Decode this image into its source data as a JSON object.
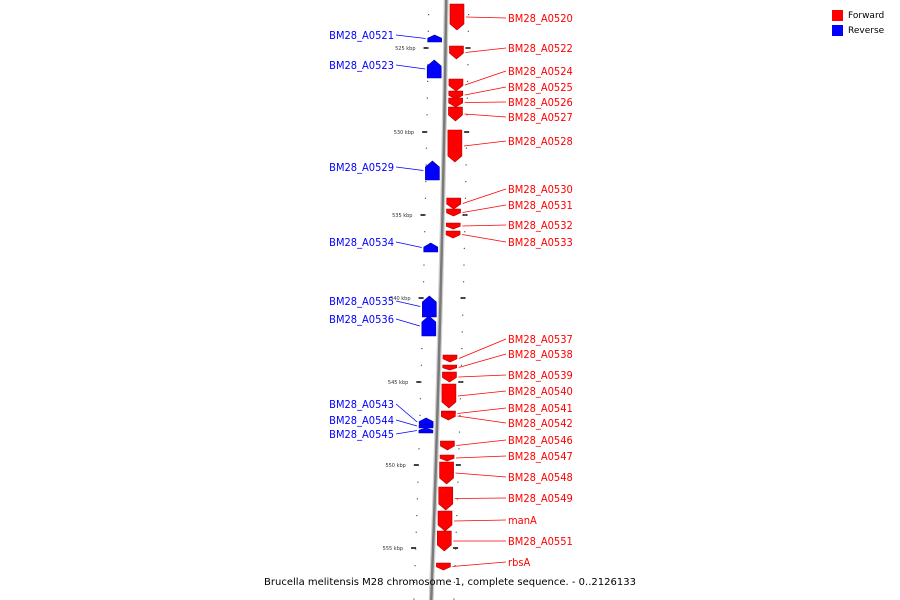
{
  "legend": {
    "forward_label": "Forward",
    "reverse_label": "Reverse",
    "forward_color": "#ff0000",
    "reverse_color": "#0000ff"
  },
  "caption": "Brucella melitensis M28 chromosome 1, complete sequence. - 0..2126133",
  "ticks": [
    {
      "label": "525 kbp"
    },
    {
      "label": "530 kbp"
    },
    {
      "label": "535 kbp"
    },
    {
      "label": "540 kbp"
    },
    {
      "label": "545 kbp"
    },
    {
      "label": "550 kbp"
    },
    {
      "label": "555 kbp"
    }
  ],
  "features": [
    {
      "name": "BM28_A0520",
      "strand": "forward"
    },
    {
      "name": "BM28_A0521",
      "strand": "reverse"
    },
    {
      "name": "BM28_A0522",
      "strand": "forward"
    },
    {
      "name": "BM28_A0523",
      "strand": "reverse"
    },
    {
      "name": "BM28_A0524",
      "strand": "forward"
    },
    {
      "name": "BM28_A0525",
      "strand": "forward"
    },
    {
      "name": "BM28_A0526",
      "strand": "forward"
    },
    {
      "name": "BM28_A0527",
      "strand": "forward"
    },
    {
      "name": "BM28_A0528",
      "strand": "forward"
    },
    {
      "name": "BM28_A0529",
      "strand": "reverse"
    },
    {
      "name": "BM28_A0530",
      "strand": "forward"
    },
    {
      "name": "BM28_A0531",
      "strand": "forward"
    },
    {
      "name": "BM28_A0532",
      "strand": "forward"
    },
    {
      "name": "BM28_A0533",
      "strand": "forward"
    },
    {
      "name": "BM28_A0534",
      "strand": "reverse"
    },
    {
      "name": "BM28_A0535",
      "strand": "reverse"
    },
    {
      "name": "BM28_A0536",
      "strand": "reverse"
    },
    {
      "name": "BM28_A0537",
      "strand": "forward"
    },
    {
      "name": "BM28_A0538",
      "strand": "forward"
    },
    {
      "name": "BM28_A0539",
      "strand": "forward"
    },
    {
      "name": "BM28_A0540",
      "strand": "forward"
    },
    {
      "name": "BM28_A0541",
      "strand": "forward"
    },
    {
      "name": "BM28_A0542",
      "strand": "forward"
    },
    {
      "name": "BM28_A0543",
      "strand": "reverse"
    },
    {
      "name": "BM28_A0544",
      "strand": "reverse"
    },
    {
      "name": "BM28_A0545",
      "strand": "reverse"
    },
    {
      "name": "BM28_A0546",
      "strand": "forward"
    },
    {
      "name": "BM28_A0547",
      "strand": "forward"
    },
    {
      "name": "BM28_A0548",
      "strand": "forward"
    },
    {
      "name": "BM28_A0549",
      "strand": "forward"
    },
    {
      "name": "manA",
      "strand": "forward"
    },
    {
      "name": "BM28_A0551",
      "strand": "forward"
    },
    {
      "name": "rbsA",
      "strand": "forward"
    }
  ]
}
